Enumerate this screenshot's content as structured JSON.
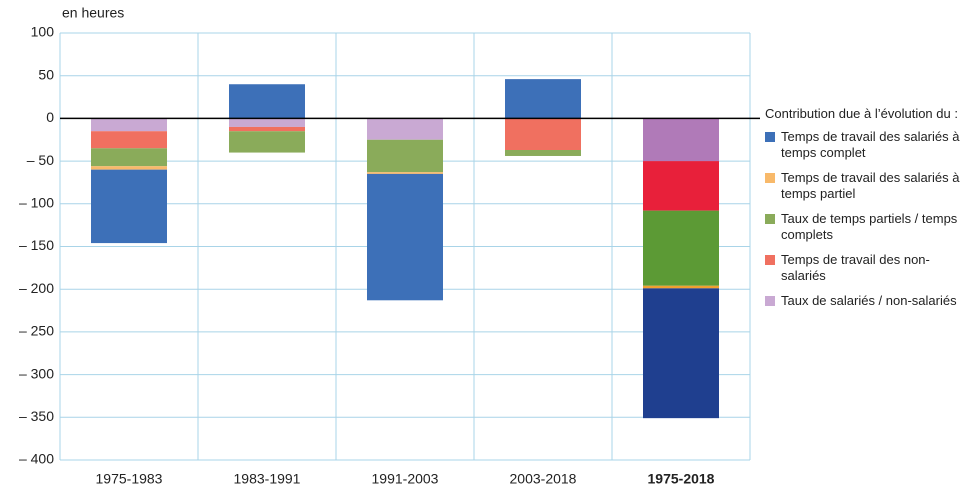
{
  "chart_data": {
    "type": "stacked-bar",
    "y_label": "en heures",
    "legend_title": "Contribution due à l’évolution du :",
    "categories": [
      "1975-1983",
      "1983-1991",
      "1991-2003",
      "2003-2018",
      "1975-2018"
    ],
    "series": [
      {
        "name": "Temps de travail des salariés à temps complet",
        "color": "#3d70b8",
        "colors": [
          "#3d70b8",
          "#3d70b8",
          "#3d70b8",
          "#3d70b8",
          "#1f3f8f"
        ],
        "values": [
          -86,
          40,
          -148,
          46,
          -152
        ]
      },
      {
        "name": "Temps de travail des salariés à temps partiel",
        "color": "#f8b96a",
        "colors": [
          "#f8b96a",
          "#f8b96a",
          "#f8b96a",
          "#f8b96a",
          "#f0a030"
        ],
        "values": [
          -4,
          0,
          -2,
          0,
          -3
        ]
      },
      {
        "name": "Taux de temps partiels / temps complets",
        "color": "#8aab5a",
        "colors": [
          "#8aab5a",
          "#8aab5a",
          "#8aab5a",
          "#8aab5a",
          "#5c9a35"
        ],
        "values": [
          -21,
          -25,
          -38,
          -7,
          -88
        ]
      },
      {
        "name": "Temps de travail des non-salariés",
        "color": "#f07060",
        "colors": [
          "#f07060",
          "#f07060",
          "#f07060",
          "#f07060",
          "#e8203a"
        ],
        "values": [
          -20,
          -5,
          0,
          -37,
          -58
        ]
      },
      {
        "name": "Taux de salariés / non-salariés",
        "color": "#c9a9d3",
        "colors": [
          "#c9a9d3",
          "#c9a9d3",
          "#c9a9d3",
          "#c9a9d3",
          "#b07ab8"
        ],
        "values": [
          -15,
          -10,
          -25,
          0,
          -50
        ]
      }
    ],
    "ylim": [
      -400,
      100
    ],
    "yticks": [
      {
        "value": -400,
        "label": "– 400"
      },
      {
        "value": -350,
        "label": "– 350"
      },
      {
        "value": -300,
        "label": "– 300"
      },
      {
        "value": -250,
        "label": "– 250"
      },
      {
        "value": -200,
        "label": "– 200"
      },
      {
        "value": -150,
        "label": "– 150"
      },
      {
        "value": -100,
        "label": "– 100"
      },
      {
        "value": -50,
        "label": "– 50"
      },
      0,
      50,
      100
    ],
    "grid": true
  }
}
